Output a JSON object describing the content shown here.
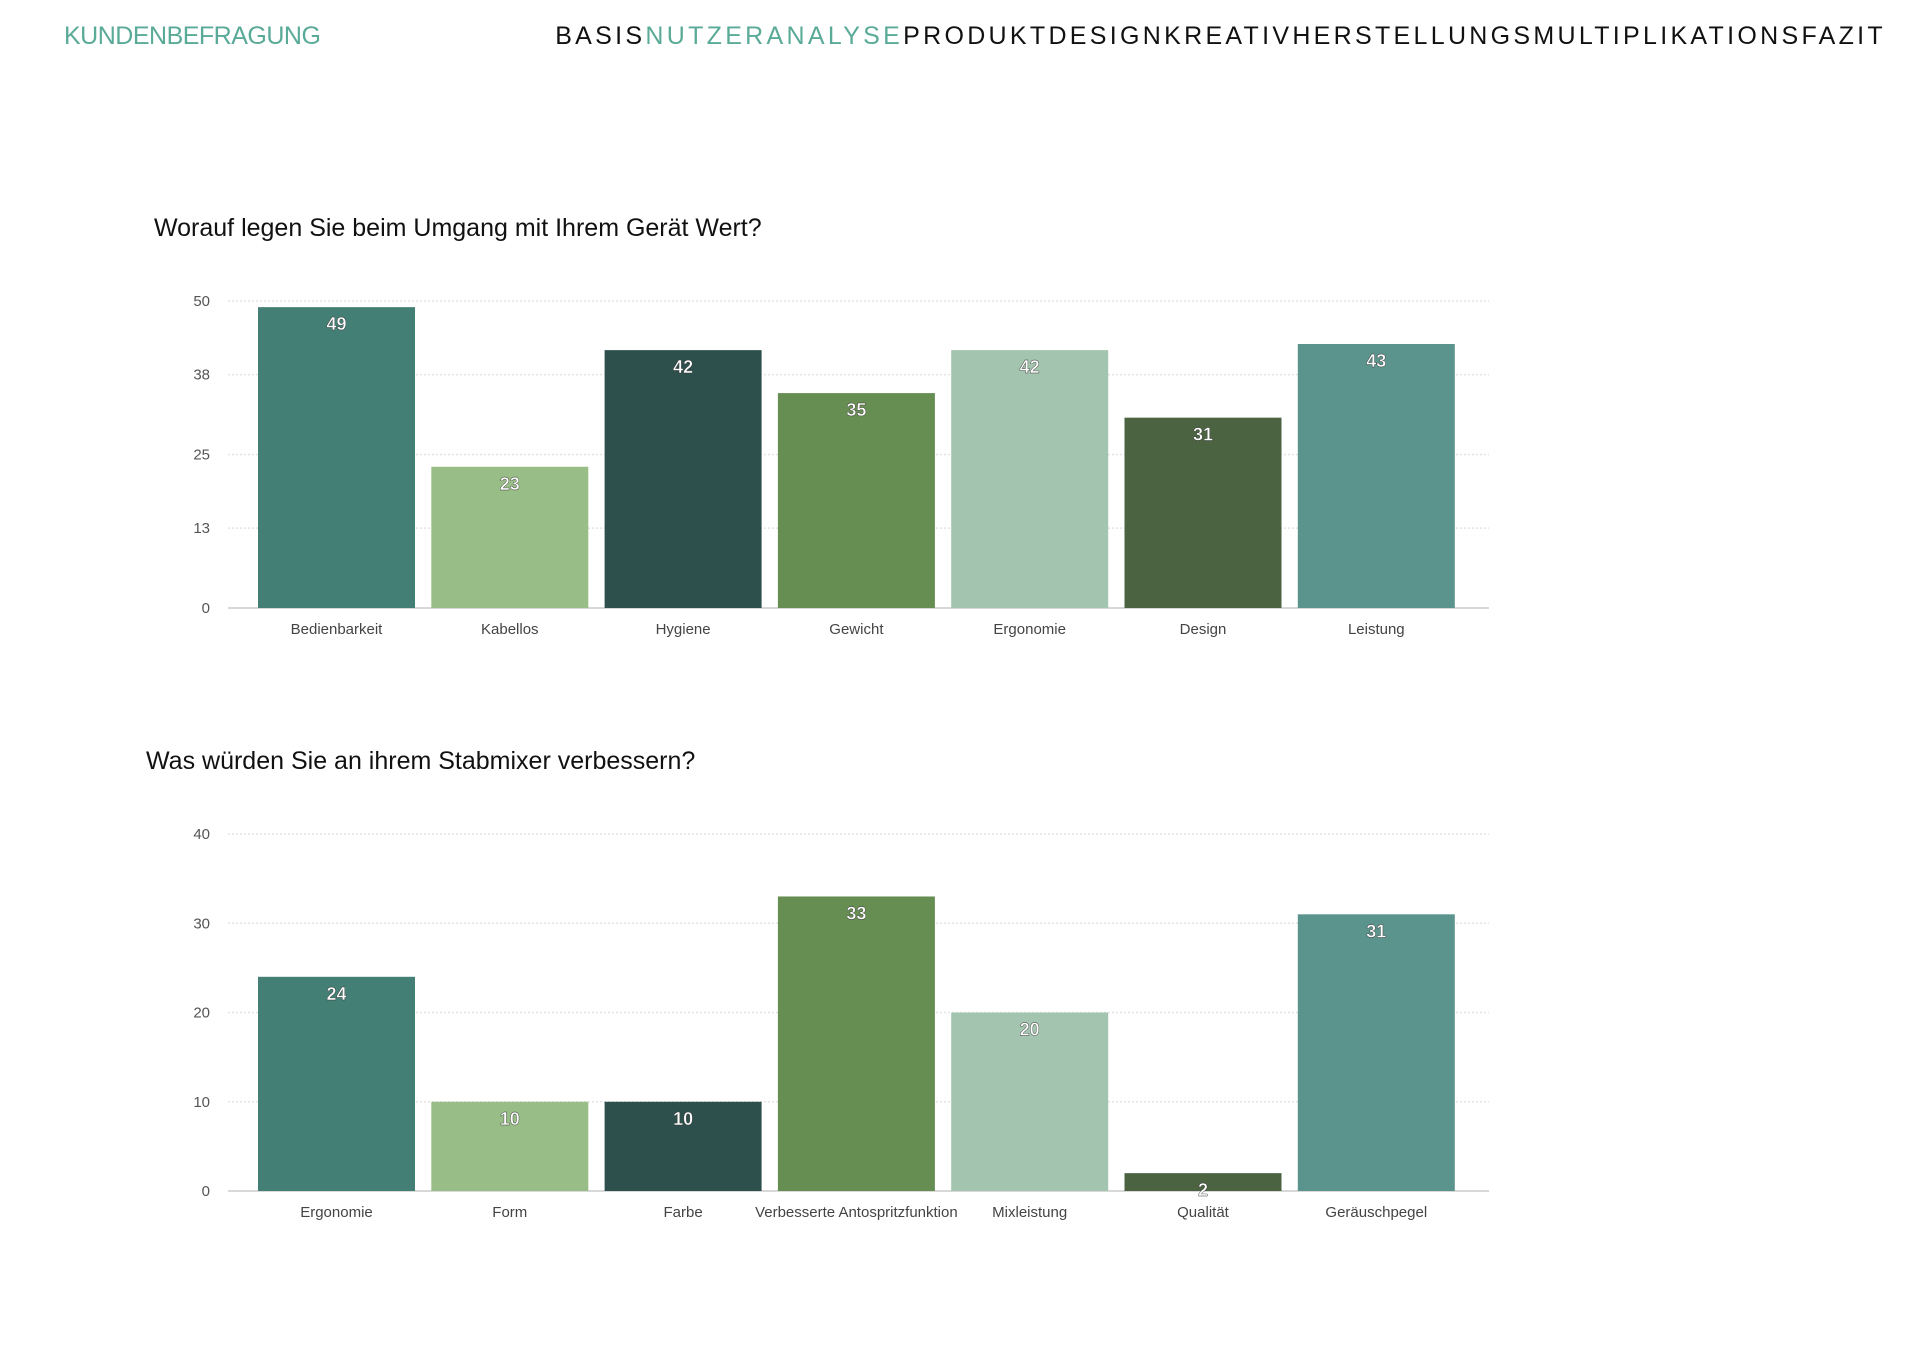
{
  "header": {
    "section": "KUNDENBEFRAGUNG",
    "nav": [
      {
        "label": "BASIS",
        "active": false
      },
      {
        "label": "NUTZERANALYSE",
        "active": true
      },
      {
        "label": "PRODUKTDESIGN",
        "active": false
      },
      {
        "label": "KREATIV",
        "active": false
      },
      {
        "label": "HERSTELLUNGS",
        "active": false
      },
      {
        "label": "MULTIPLIKATIONS",
        "active": false
      },
      {
        "label": "FAZIT",
        "active": false
      }
    ]
  },
  "colors": {
    "accent": "#5aaa98",
    "bars": [
      "#437f74",
      "#98bd86",
      "#2d504d",
      "#668e52",
      "#a3c4ae",
      "#4b6340",
      "#5b948c"
    ]
  },
  "chart_data": [
    {
      "type": "bar",
      "title": "Worauf legen Sie beim Umgang mit Ihrem Gerät Wert?",
      "categories": [
        "Bedienbarkeit",
        "Kabellos",
        "Hygiene",
        "Gewicht",
        "Ergonomie",
        "Design",
        "Leistung"
      ],
      "values": [
        49,
        23,
        42,
        35,
        42,
        31,
        43
      ],
      "yticks": [
        "0",
        "13",
        "25",
        "38",
        "50"
      ],
      "ylim": [
        0,
        50
      ],
      "xlabel": "",
      "ylabel": "",
      "grid": true
    },
    {
      "type": "bar",
      "title": "Was würden Sie an ihrem Stabmixer verbessern?",
      "categories": [
        "Ergonomie",
        "Form",
        "Farbe",
        "Verbesserte Antospritzfunktion",
        "Mixleistung",
        "Qualität",
        "Geräuschpegel"
      ],
      "values": [
        24,
        10,
        10,
        33,
        20,
        2,
        31
      ],
      "yticks": [
        "0",
        "10",
        "20",
        "30",
        "40"
      ],
      "ylim": [
        0,
        40
      ],
      "xlabel": "",
      "ylabel": "",
      "grid": true
    }
  ]
}
